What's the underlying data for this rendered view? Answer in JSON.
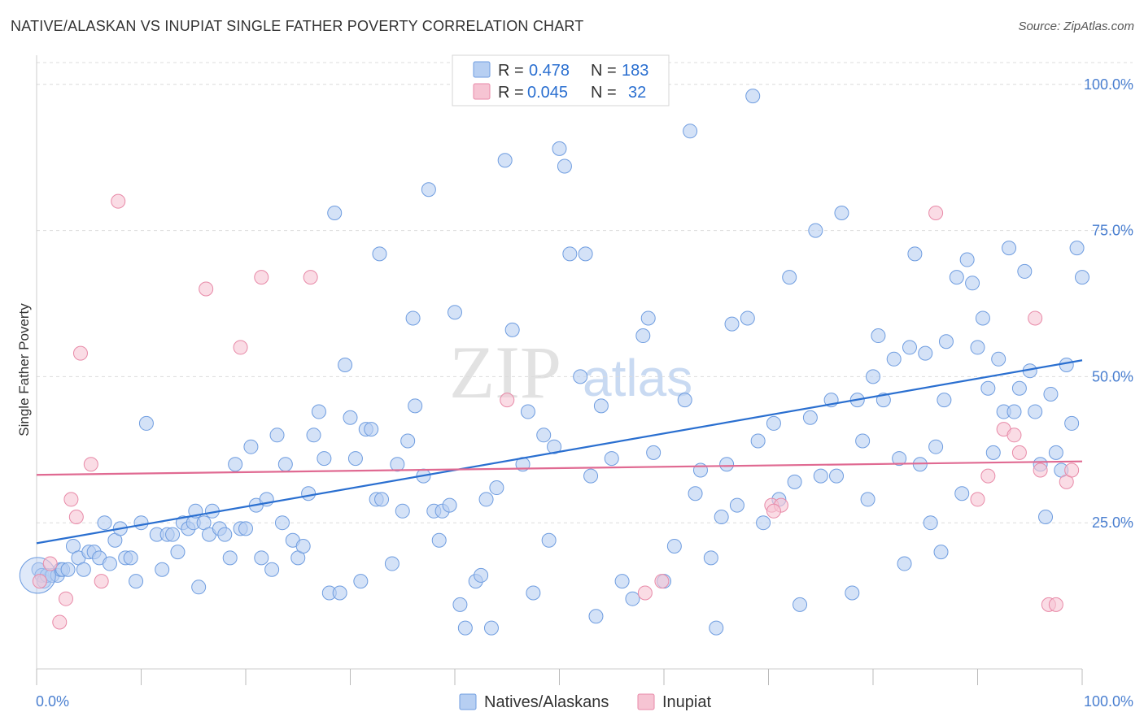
{
  "title": "NATIVE/ALASKAN VS INUPIAT SINGLE FATHER POVERTY CORRELATION CHART",
  "source": "Source: ZipAtlas.com",
  "watermark": {
    "zip": "ZIP",
    "atlas": "atlas"
  },
  "colors": {
    "blue_fill": "#b7cff2",
    "blue_stroke": "#6f9de0",
    "blue_line": "#2a6fd0",
    "pink_fill": "#f6c4d3",
    "pink_stroke": "#e88aa8",
    "pink_line": "#e06a92",
    "axis_text": "#4a7fd0",
    "grid": "#dcdcdc"
  },
  "legend_top": {
    "rows": [
      {
        "r_label": "R =",
        "r_value": "0.478",
        "n_label": "N =",
        "n_value": "183",
        "color": "blue"
      },
      {
        "r_label": "R =",
        "r_value": "0.045",
        "n_label": "N =",
        "n_value": "32",
        "color": "pink"
      }
    ]
  },
  "legend_bottom": [
    {
      "label": "Natives/Alaskans",
      "color": "blue"
    },
    {
      "label": "Inupiat",
      "color": "pink"
    }
  ],
  "chart_data": {
    "type": "scatter",
    "title": "NATIVE/ALASKAN VS INUPIAT SINGLE FATHER POVERTY CORRELATION CHART",
    "xlabel": "",
    "ylabel": "Single Father Poverty",
    "xlim": [
      0,
      100
    ],
    "ylim": [
      0,
      104
    ],
    "x_tick_labels": [
      "0.0%",
      "100.0%"
    ],
    "y_ticks": [
      25,
      50,
      75,
      100
    ],
    "y_tick_labels": [
      "25.0%",
      "50.0%",
      "75.0%",
      "100.0%"
    ],
    "grid": true,
    "legend_position": "top-center",
    "series": [
      {
        "name": "Natives/Alaskans",
        "color": "blue",
        "trend": {
          "x": [
            0,
            100
          ],
          "y": [
            21.5,
            52.8
          ]
        },
        "points": [
          [
            0.2,
            17
          ],
          [
            0.5,
            16
          ],
          [
            0.7,
            15
          ],
          [
            1.0,
            16
          ],
          [
            1.5,
            16
          ],
          [
            2.0,
            16
          ],
          [
            2.3,
            17
          ],
          [
            2.5,
            17
          ],
          [
            3.0,
            17
          ],
          [
            3.5,
            21
          ],
          [
            4.0,
            19
          ],
          [
            4.5,
            17
          ],
          [
            5.0,
            20
          ],
          [
            5.5,
            20
          ],
          [
            6.0,
            19
          ],
          [
            6.5,
            25
          ],
          [
            7.0,
            18
          ],
          [
            7.5,
            22
          ],
          [
            8.0,
            24
          ],
          [
            8.5,
            19
          ],
          [
            9.0,
            19
          ],
          [
            9.5,
            15
          ],
          [
            10.0,
            25
          ],
          [
            10.5,
            42
          ],
          [
            11.5,
            23
          ],
          [
            12.0,
            17
          ],
          [
            12.5,
            23
          ],
          [
            13.0,
            23
          ],
          [
            13.5,
            20
          ],
          [
            14.0,
            25
          ],
          [
            14.5,
            24
          ],
          [
            15.0,
            25
          ],
          [
            15.2,
            27
          ],
          [
            15.5,
            14
          ],
          [
            16.0,
            25
          ],
          [
            16.5,
            23
          ],
          [
            16.8,
            27
          ],
          [
            17.5,
            24
          ],
          [
            18.0,
            23
          ],
          [
            18.5,
            19
          ],
          [
            19.0,
            35
          ],
          [
            19.5,
            24
          ],
          [
            20.0,
            24
          ],
          [
            20.5,
            38
          ],
          [
            21.0,
            28
          ],
          [
            21.5,
            19
          ],
          [
            22.0,
            29
          ],
          [
            22.5,
            17
          ],
          [
            23.0,
            40
          ],
          [
            23.5,
            25
          ],
          [
            23.8,
            35
          ],
          [
            24.5,
            22
          ],
          [
            25.0,
            19
          ],
          [
            25.5,
            21
          ],
          [
            26.0,
            30
          ],
          [
            26.5,
            40
          ],
          [
            27.0,
            44
          ],
          [
            27.5,
            36
          ],
          [
            28.0,
            13
          ],
          [
            28.5,
            78
          ],
          [
            29.0,
            13
          ],
          [
            29.5,
            52
          ],
          [
            30.0,
            43
          ],
          [
            30.5,
            36
          ],
          [
            31.0,
            15
          ],
          [
            31.5,
            41
          ],
          [
            32.0,
            41
          ],
          [
            32.5,
            29
          ],
          [
            33.0,
            29
          ],
          [
            32.8,
            71
          ],
          [
            34.0,
            18
          ],
          [
            34.5,
            35
          ],
          [
            35.0,
            27
          ],
          [
            35.5,
            39
          ],
          [
            36.0,
            60
          ],
          [
            36.2,
            45
          ],
          [
            37.0,
            33
          ],
          [
            37.5,
            82
          ],
          [
            38.0,
            27
          ],
          [
            38.5,
            22
          ],
          [
            38.8,
            27
          ],
          [
            39.5,
            28
          ],
          [
            40.0,
            61
          ],
          [
            40.5,
            11
          ],
          [
            41.0,
            7
          ],
          [
            42.0,
            15
          ],
          [
            42.5,
            16
          ],
          [
            43.0,
            29
          ],
          [
            43.5,
            7
          ],
          [
            44.0,
            31
          ],
          [
            44.8,
            87
          ],
          [
            45.5,
            58
          ],
          [
            46.5,
            35
          ],
          [
            47.0,
            44
          ],
          [
            47.5,
            13
          ],
          [
            48.5,
            40
          ],
          [
            49.0,
            22
          ],
          [
            49.5,
            38
          ],
          [
            50.0,
            89
          ],
          [
            50.5,
            86
          ],
          [
            51.0,
            71
          ],
          [
            52.0,
            50
          ],
          [
            52.5,
            71
          ],
          [
            53.0,
            33
          ],
          [
            53.5,
            9
          ],
          [
            54.0,
            45
          ],
          [
            55.0,
            36
          ],
          [
            56.0,
            15
          ],
          [
            57.0,
            12
          ],
          [
            58.0,
            57
          ],
          [
            58.5,
            60
          ],
          [
            59.0,
            37
          ],
          [
            60.0,
            15
          ],
          [
            61.0,
            21
          ],
          [
            62.0,
            46
          ],
          [
            62.5,
            92
          ],
          [
            63.0,
            30
          ],
          [
            63.5,
            34
          ],
          [
            64.5,
            19
          ],
          [
            65.0,
            7
          ],
          [
            65.5,
            26
          ],
          [
            66.0,
            35
          ],
          [
            66.5,
            59
          ],
          [
            67.0,
            28
          ],
          [
            68.0,
            60
          ],
          [
            68.5,
            98
          ],
          [
            69.0,
            39
          ],
          [
            69.5,
            25
          ],
          [
            70.5,
            42
          ],
          [
            71.0,
            29
          ],
          [
            72.0,
            67
          ],
          [
            72.5,
            32
          ],
          [
            73.0,
            11
          ],
          [
            74.0,
            43
          ],
          [
            74.5,
            75
          ],
          [
            75.0,
            33
          ],
          [
            76.0,
            46
          ],
          [
            76.5,
            33
          ],
          [
            77.0,
            78
          ],
          [
            78.0,
            13
          ],
          [
            78.5,
            46
          ],
          [
            79.0,
            39
          ],
          [
            79.5,
            29
          ],
          [
            80.0,
            50
          ],
          [
            80.5,
            57
          ],
          [
            81.0,
            46
          ],
          [
            82.0,
            53
          ],
          [
            82.5,
            36
          ],
          [
            83.0,
            18
          ],
          [
            83.5,
            55
          ],
          [
            84.0,
            71
          ],
          [
            84.5,
            35
          ],
          [
            85.0,
            54
          ],
          [
            85.5,
            25
          ],
          [
            86.0,
            38
          ],
          [
            86.5,
            20
          ],
          [
            86.8,
            46
          ],
          [
            87.0,
            56
          ],
          [
            88.0,
            67
          ],
          [
            88.5,
            30
          ],
          [
            89.0,
            70
          ],
          [
            89.5,
            66
          ],
          [
            90.0,
            55
          ],
          [
            90.5,
            60
          ],
          [
            91.0,
            48
          ],
          [
            91.5,
            37
          ],
          [
            92.0,
            53
          ],
          [
            92.5,
            44
          ],
          [
            93.0,
            72
          ],
          [
            93.5,
            44
          ],
          [
            94.0,
            48
          ],
          [
            94.5,
            68
          ],
          [
            95.0,
            51
          ],
          [
            95.5,
            44
          ],
          [
            96.0,
            35
          ],
          [
            96.5,
            26
          ],
          [
            97.0,
            47
          ],
          [
            97.5,
            37
          ],
          [
            98.0,
            34
          ],
          [
            98.5,
            52
          ],
          [
            99.0,
            42
          ],
          [
            99.5,
            72
          ],
          [
            100.0,
            67
          ]
        ]
      },
      {
        "name": "Inupiat",
        "color": "pink",
        "trend": {
          "x": [
            0,
            100
          ],
          "y": [
            33.2,
            35.5
          ]
        },
        "points": [
          [
            0.3,
            15
          ],
          [
            1.3,
            18
          ],
          [
            2.2,
            8
          ],
          [
            2.8,
            12
          ],
          [
            3.3,
            29
          ],
          [
            3.8,
            26
          ],
          [
            4.2,
            54
          ],
          [
            5.2,
            35
          ],
          [
            6.2,
            15
          ],
          [
            7.8,
            80
          ],
          [
            16.2,
            65
          ],
          [
            19.5,
            55
          ],
          [
            21.5,
            67
          ],
          [
            26.2,
            67
          ],
          [
            58.2,
            13
          ],
          [
            59.8,
            15
          ],
          [
            70.3,
            28
          ],
          [
            71.2,
            28
          ],
          [
            86.0,
            78
          ],
          [
            90.0,
            29
          ],
          [
            91.0,
            33
          ],
          [
            92.5,
            41
          ],
          [
            93.5,
            40
          ],
          [
            94.0,
            37
          ],
          [
            95.5,
            60
          ],
          [
            96.0,
            34
          ],
          [
            96.8,
            11
          ],
          [
            97.5,
            11
          ],
          [
            98.5,
            32
          ],
          [
            99.0,
            34
          ],
          [
            70.5,
            27
          ],
          [
            45.0,
            46
          ]
        ]
      }
    ]
  }
}
